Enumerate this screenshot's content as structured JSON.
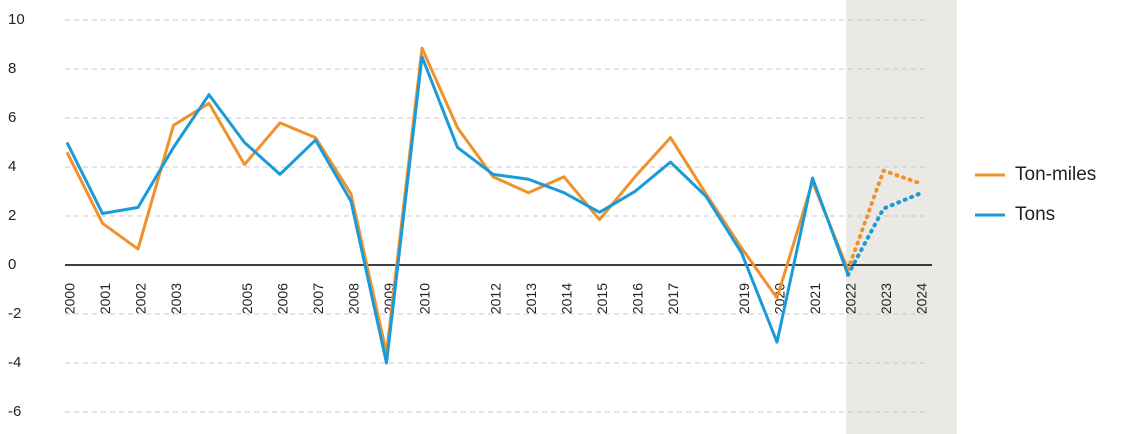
{
  "chart_data": {
    "type": "line",
    "categories": [
      "2000",
      "2001",
      "2002",
      "2003",
      null,
      "2005",
      "2006",
      "2007",
      "2008",
      "2009",
      "2010",
      null,
      "2012",
      "2013",
      "2014",
      "2015",
      "2016",
      "2017",
      null,
      "2019",
      "2020",
      "2021",
      "2022",
      "2023",
      "2024"
    ],
    "series": [
      {
        "name": "Ton-miles",
        "color": "#f0922b",
        "values": [
          4.6,
          1.7,
          0.65,
          5.7,
          6.6,
          4.1,
          5.8,
          5.2,
          2.9,
          -3.6,
          8.85,
          5.6,
          3.6,
          2.95,
          3.6,
          1.85,
          3.6,
          5.2,
          2.9,
          0.7,
          -1.35,
          3.4,
          -0.2,
          3.85,
          3.35
        ]
      },
      {
        "name": "Tons",
        "color": "#1a9bd7",
        "values": [
          5.0,
          2.1,
          2.35,
          4.8,
          6.95,
          5.0,
          3.7,
          5.1,
          2.6,
          -4.0,
          8.5,
          4.8,
          3.7,
          3.5,
          2.95,
          2.15,
          3.0,
          4.2,
          2.8,
          0.5,
          -3.15,
          3.55,
          -0.4,
          2.3,
          2.9
        ]
      }
    ],
    "forecast_from": 22,
    "ylim": [
      -6.9,
      10.3
    ],
    "yticks": [
      -6,
      -4,
      -2,
      0,
      2,
      4,
      6,
      8,
      10
    ],
    "grid": true,
    "legend": "right"
  }
}
